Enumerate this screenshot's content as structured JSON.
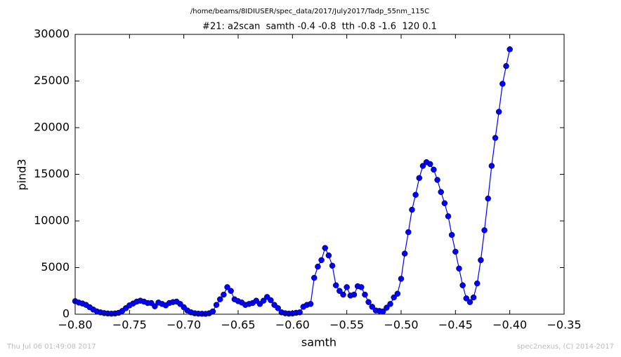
{
  "chart_data": {
    "type": "line",
    "title": "#21: a2scan  samth -0.4 -0.8  tth -0.8 -1.6  120 0.1",
    "subtitle": "/home/beams/8IDIUSER/spec_data/2017/July2017/Tadp_55nm_115C",
    "x_label": "samth",
    "y_label": "pind3",
    "footer_left": "Thu Jul 06 01:49:08 2017",
    "footer_right": "spec2nexus, (C) 2014-2017",
    "x": [
      -0.8,
      -0.79667,
      -0.79333,
      -0.79,
      -0.78667,
      -0.78333,
      -0.78,
      -0.77667,
      -0.77333,
      -0.77,
      -0.76667,
      -0.76333,
      -0.76,
      -0.75667,
      -0.75333,
      -0.75,
      -0.74667,
      -0.74333,
      -0.74,
      -0.73667,
      -0.73333,
      -0.73,
      -0.72667,
      -0.72333,
      -0.72,
      -0.71667,
      -0.71333,
      -0.71,
      -0.70667,
      -0.70333,
      -0.7,
      -0.69667,
      -0.69333,
      -0.69,
      -0.68667,
      -0.68333,
      -0.68,
      -0.67667,
      -0.67333,
      -0.67,
      -0.66667,
      -0.66333,
      -0.66,
      -0.65667,
      -0.65333,
      -0.65,
      -0.64667,
      -0.64333,
      -0.64,
      -0.63667,
      -0.63333,
      -0.63,
      -0.62667,
      -0.62333,
      -0.62,
      -0.61667,
      -0.61333,
      -0.61,
      -0.60667,
      -0.60333,
      -0.6,
      -0.59667,
      -0.59333,
      -0.59,
      -0.58667,
      -0.58333,
      -0.58,
      -0.57667,
      -0.57333,
      -0.57,
      -0.56667,
      -0.56333,
      -0.56,
      -0.55667,
      -0.55333,
      -0.55,
      -0.54667,
      -0.54333,
      -0.54,
      -0.53667,
      -0.53333,
      -0.53,
      -0.52667,
      -0.52333,
      -0.52,
      -0.51667,
      -0.51333,
      -0.51,
      -0.50667,
      -0.50333,
      -0.5,
      -0.49667,
      -0.49333,
      -0.49,
      -0.48667,
      -0.48333,
      -0.48,
      -0.47667,
      -0.47333,
      -0.47,
      -0.46667,
      -0.46333,
      -0.46,
      -0.45667,
      -0.45333,
      -0.45,
      -0.44667,
      -0.44333,
      -0.44,
      -0.43667,
      -0.43333,
      -0.43,
      -0.42667,
      -0.42333,
      -0.42,
      -0.41667,
      -0.41333,
      -0.41,
      -0.40667,
      -0.40333,
      -0.4
    ],
    "series": [
      {
        "name": "pind3",
        "color": "#0000ff",
        "values": [
          1400,
          1250,
          1150,
          1000,
          750,
          500,
          300,
          200,
          120,
          80,
          60,
          80,
          150,
          350,
          650,
          950,
          1150,
          1350,
          1450,
          1350,
          1200,
          1200,
          850,
          1250,
          1100,
          950,
          1200,
          1300,
          1350,
          1100,
          750,
          400,
          200,
          100,
          60,
          50,
          40,
          100,
          300,
          1000,
          1600,
          2100,
          2900,
          2500,
          1600,
          1400,
          1250,
          1000,
          1100,
          1200,
          1450,
          1100,
          1450,
          1850,
          1500,
          1000,
          650,
          200,
          100,
          60,
          80,
          150,
          200,
          800,
          1000,
          1100,
          3900,
          5100,
          5800,
          7100,
          6300,
          5200,
          3100,
          2500,
          2100,
          2900,
          2000,
          2100,
          3000,
          2900,
          2100,
          1300,
          800,
          400,
          350,
          300,
          700,
          1100,
          1800,
          2200,
          3800,
          6500,
          8800,
          11200,
          12800,
          14600,
          15900,
          16300,
          16100,
          15500,
          14400,
          13100,
          11900,
          10500,
          8500,
          6700,
          4900,
          3100,
          1700,
          1300,
          1800,
          3300,
          5800,
          9000,
          12400,
          15900,
          18900,
          21700,
          24700,
          26600,
          28400
        ]
      }
    ],
    "xlim": [
      -0.8,
      -0.35
    ],
    "xticks": [
      {
        "value": -0.8,
        "label": "−0.80"
      },
      {
        "value": -0.75,
        "label": "−0.75"
      },
      {
        "value": -0.7,
        "label": "−0.70"
      },
      {
        "value": -0.65,
        "label": "−0.65"
      },
      {
        "value": -0.6,
        "label": "−0.60"
      },
      {
        "value": -0.55,
        "label": "−0.55"
      },
      {
        "value": -0.5,
        "label": "−0.50"
      },
      {
        "value": -0.45,
        "label": "−0.45"
      },
      {
        "value": -0.4,
        "label": "−0.40"
      },
      {
        "value": -0.35,
        "label": "−0.35"
      }
    ],
    "ylim": [
      0,
      30000
    ],
    "yticks": [
      0,
      5000,
      10000,
      15000,
      20000,
      25000,
      30000
    ],
    "grid": false
  }
}
